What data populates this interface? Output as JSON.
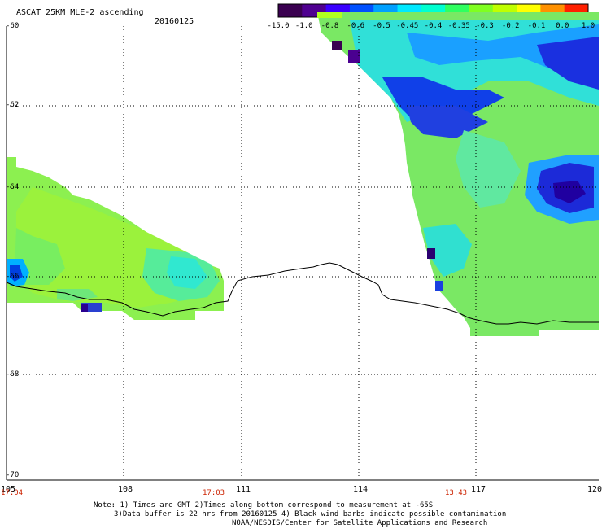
{
  "title": "ASCAT 25KM MLE-2 ascending",
  "date": "20160125",
  "colorbar": {
    "labels": [
      "-15.0",
      "-1.0",
      "-0.8",
      "-0.6",
      "-0.5",
      "-0.45",
      "-0.4",
      "-0.35",
      "-0.3",
      "-0.2",
      "-0.1",
      "0.0",
      "1.0"
    ],
    "colors": [
      "#3a0050",
      "#4f0090",
      "#3a00ff",
      "#0050ff",
      "#00a0ff",
      "#00e8ff",
      "#00ffd0",
      "#30ff60",
      "#80ff20",
      "#c0ff00",
      "#ffff00",
      "#ff9000",
      "#ff2000"
    ]
  },
  "axes": {
    "x_ticks": [
      "105",
      "108",
      "111",
      "114",
      "117",
      "120"
    ],
    "y_ticks": [
      "-60",
      "-62",
      "-64",
      "-66",
      "-68",
      "-70"
    ]
  },
  "times": [
    "17:04",
    "17:03",
    "13:43"
  ],
  "notes": [
    "Note: 1) Times are GMT 2)Times along bottom correspond to measurement at -65S",
    "3)Data buffer is 22 hrs from 20160125 4) Black wind barbs indicate possible contamination",
    "NOAA/NESDIS/Center for Satellite Applications and Research"
  ]
}
